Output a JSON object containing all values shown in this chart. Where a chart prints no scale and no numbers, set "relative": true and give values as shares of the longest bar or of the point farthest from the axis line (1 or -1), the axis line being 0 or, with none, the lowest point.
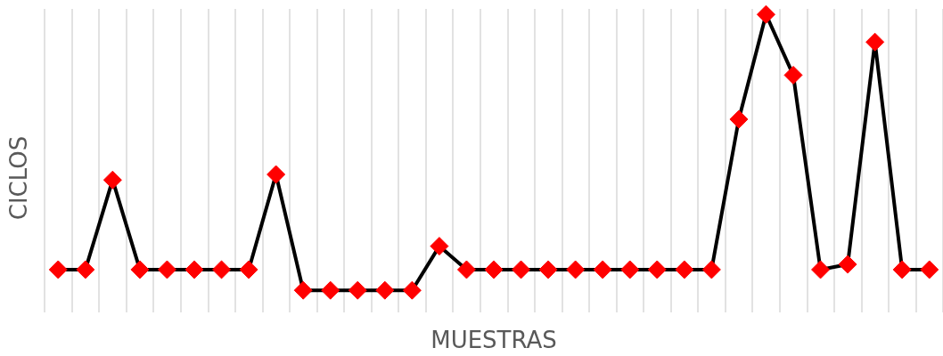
{
  "chart_data": {
    "type": "line",
    "xlabel": "MUESTRAS",
    "ylabel": "CICLOS",
    "relative": true,
    "grid": "x",
    "marker": "diamond",
    "line_style": "solid",
    "categories": [
      null,
      null,
      null,
      null,
      null,
      null,
      null,
      null,
      null,
      null,
      null,
      null,
      null,
      null,
      null,
      null,
      null,
      null,
      null,
      null,
      null,
      null,
      null,
      null,
      null,
      null,
      null,
      null,
      null,
      null,
      null,
      null,
      null
    ],
    "series": [
      {
        "color": "#000000",
        "colors": [
          "#ff0000",
          "#ff0000",
          "#ff0000",
          "#ff0000",
          "#ff0000",
          "#ff0000",
          "#ff0000",
          "#ff0000",
          "#ff0000",
          "#ff0000",
          "#ff0000",
          "#ff0000",
          "#ff0000",
          "#ff0000",
          "#ff0000",
          "#ff0000",
          "#ff0000",
          "#ff0000",
          "#ff0000",
          "#ff0000",
          "#ff0000",
          "#ff0000",
          "#ff0000",
          "#ff0000",
          "#ff0000",
          "#ff0000",
          "#ff0000",
          "#ff0000",
          "#ff0000",
          "#ff0000",
          "#ff0000",
          "#ff0000",
          "#ff0000"
        ],
        "values": [
          0.075,
          0.075,
          0.4,
          0.075,
          0.075,
          0.075,
          0.075,
          0.075,
          0.42,
          0,
          0,
          0,
          0,
          0,
          0.16,
          0.075,
          0.075,
          0.075,
          0.075,
          0.075,
          0.075,
          0.075,
          0.075,
          0.075,
          0.075,
          0.62,
          1,
          0.78,
          0.075,
          0.094,
          0.9,
          0.075,
          0.075
        ]
      }
    ]
  }
}
